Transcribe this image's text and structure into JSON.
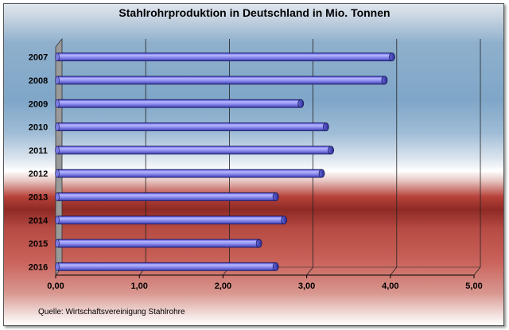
{
  "chart_data": {
    "type": "bar",
    "orientation": "horizontal",
    "title": "Stahlrohrproduktion in Deutschland in Mio. Tonnen",
    "categories": [
      "2007",
      "2008",
      "2009",
      "2010",
      "2011",
      "2012",
      "2013",
      "2014",
      "2015",
      "2016"
    ],
    "values": [
      4.02,
      3.93,
      2.93,
      3.23,
      3.29,
      3.18,
      2.63,
      2.73,
      2.43,
      2.63
    ],
    "xlim": [
      0,
      5
    ],
    "xticks": [
      "0,00",
      "1,00",
      "2,00",
      "3,00",
      "4,00",
      "5,00"
    ],
    "grid": true,
    "colors": {
      "bar": "#8f8ff0",
      "bar_edge": "#1a1a5a"
    },
    "source": "Quelle: Wirtschaftsvereinigung Stahlrohre"
  }
}
